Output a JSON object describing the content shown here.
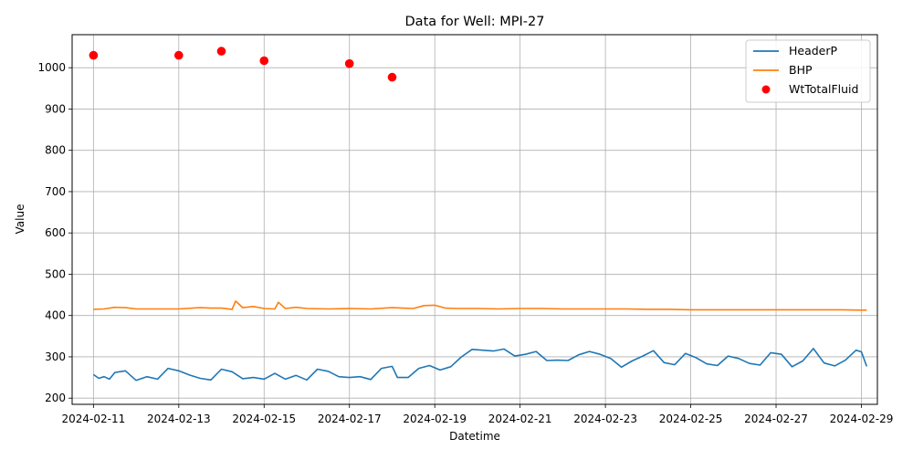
{
  "chart_data": {
    "type": "line",
    "title": "Data for Well: MPI-27",
    "xlabel": "Datetime",
    "ylabel": "Value",
    "xlim": [
      "2024-02-10T12:00",
      "2024-02-29T09:00"
    ],
    "ylim": [
      185,
      1080
    ],
    "grid": true,
    "legend_position": "top-right",
    "x_ticks": [
      "2024-02-11",
      "2024-02-13",
      "2024-02-15",
      "2024-02-17",
      "2024-02-19",
      "2024-02-21",
      "2024-02-23",
      "2024-02-25",
      "2024-02-27",
      "2024-02-29"
    ],
    "y_ticks": [
      200,
      300,
      400,
      500,
      600,
      700,
      800,
      900,
      1000
    ],
    "series": [
      {
        "name": "HeaderP",
        "kind": "line",
        "color": "#1f77b4",
        "points": [
          [
            "2024-02-11T00:00",
            257
          ],
          [
            "2024-02-11T03:00",
            248
          ],
          [
            "2024-02-11T06:00",
            252
          ],
          [
            "2024-02-11T09:00",
            246
          ],
          [
            "2024-02-11T12:00",
            262
          ],
          [
            "2024-02-11T18:00",
            266
          ],
          [
            "2024-02-12T00:00",
            243
          ],
          [
            "2024-02-12T06:00",
            252
          ],
          [
            "2024-02-12T12:00",
            246
          ],
          [
            "2024-02-12T18:00",
            272
          ],
          [
            "2024-02-13T00:00",
            266
          ],
          [
            "2024-02-13T06:00",
            256
          ],
          [
            "2024-02-13T12:00",
            248
          ],
          [
            "2024-02-13T18:00",
            244
          ],
          [
            "2024-02-14T00:00",
            270
          ],
          [
            "2024-02-14T06:00",
            264
          ],
          [
            "2024-02-14T12:00",
            247
          ],
          [
            "2024-02-14T18:00",
            250
          ],
          [
            "2024-02-15T00:00",
            246
          ],
          [
            "2024-02-15T06:00",
            260
          ],
          [
            "2024-02-15T12:00",
            246
          ],
          [
            "2024-02-15T18:00",
            255
          ],
          [
            "2024-02-16T00:00",
            244
          ],
          [
            "2024-02-16T06:00",
            270
          ],
          [
            "2024-02-16T12:00",
            265
          ],
          [
            "2024-02-16T18:00",
            252
          ],
          [
            "2024-02-17T00:00",
            250
          ],
          [
            "2024-02-17T06:00",
            252
          ],
          [
            "2024-02-17T12:00",
            245
          ],
          [
            "2024-02-17T18:00",
            272
          ],
          [
            "2024-02-18T00:00",
            277
          ],
          [
            "2024-02-18T03:00",
            250
          ],
          [
            "2024-02-18T09:00",
            250
          ],
          [
            "2024-02-18T15:00",
            272
          ],
          [
            "2024-02-18T21:00",
            279
          ],
          [
            "2024-02-19T03:00",
            268
          ],
          [
            "2024-02-19T09:00",
            276
          ],
          [
            "2024-02-19T15:00",
            300
          ],
          [
            "2024-02-19T21:00",
            318
          ],
          [
            "2024-02-20T03:00",
            316
          ],
          [
            "2024-02-20T09:00",
            314
          ],
          [
            "2024-02-20T15:00",
            319
          ],
          [
            "2024-02-20T21:00",
            302
          ],
          [
            "2024-02-21T03:00",
            306
          ],
          [
            "2024-02-21T09:00",
            313
          ],
          [
            "2024-02-21T15:00",
            291
          ],
          [
            "2024-02-21T21:00",
            292
          ],
          [
            "2024-02-22T03:00",
            291
          ],
          [
            "2024-02-22T09:00",
            305
          ],
          [
            "2024-02-22T15:00",
            313
          ],
          [
            "2024-02-22T21:00",
            306
          ],
          [
            "2024-02-23T03:00",
            296
          ],
          [
            "2024-02-23T09:00",
            275
          ],
          [
            "2024-02-23T15:00",
            290
          ],
          [
            "2024-02-23T21:00",
            302
          ],
          [
            "2024-02-24T03:00",
            315
          ],
          [
            "2024-02-24T09:00",
            286
          ],
          [
            "2024-02-24T15:00",
            281
          ],
          [
            "2024-02-24T21:00",
            308
          ],
          [
            "2024-02-25T03:00",
            298
          ],
          [
            "2024-02-25T09:00",
            283
          ],
          [
            "2024-02-25T15:00",
            279
          ],
          [
            "2024-02-25T21:00",
            302
          ],
          [
            "2024-02-26T03:00",
            296
          ],
          [
            "2024-02-26T09:00",
            284
          ],
          [
            "2024-02-26T15:00",
            280
          ],
          [
            "2024-02-26T21:00",
            310
          ],
          [
            "2024-02-27T03:00",
            306
          ],
          [
            "2024-02-27T09:00",
            276
          ],
          [
            "2024-02-27T15:00",
            290
          ],
          [
            "2024-02-27T21:00",
            320
          ],
          [
            "2024-02-28T03:00",
            285
          ],
          [
            "2024-02-28T09:00",
            278
          ],
          [
            "2024-02-28T15:00",
            292
          ],
          [
            "2024-02-28T21:00",
            316
          ],
          [
            "2024-02-29T00:00",
            312
          ],
          [
            "2024-02-29T03:00",
            277
          ]
        ]
      },
      {
        "name": "BHP",
        "kind": "line",
        "color": "#ff7f0e",
        "points": [
          [
            "2024-02-11T00:00",
            415
          ],
          [
            "2024-02-11T06:00",
            416
          ],
          [
            "2024-02-11T12:00",
            420
          ],
          [
            "2024-02-11T18:00",
            419
          ],
          [
            "2024-02-12T00:00",
            416
          ],
          [
            "2024-02-12T12:00",
            416
          ],
          [
            "2024-02-13T00:00",
            416
          ],
          [
            "2024-02-13T12:00",
            419
          ],
          [
            "2024-02-13T18:00",
            418
          ],
          [
            "2024-02-14T00:00",
            418
          ],
          [
            "2024-02-14T06:00",
            415
          ],
          [
            "2024-02-14T08:00",
            435
          ],
          [
            "2024-02-14T12:00",
            419
          ],
          [
            "2024-02-14T18:00",
            422
          ],
          [
            "2024-02-15T00:00",
            417
          ],
          [
            "2024-02-15T06:00",
            416
          ],
          [
            "2024-02-15T08:00",
            432
          ],
          [
            "2024-02-15T12:00",
            417
          ],
          [
            "2024-02-15T18:00",
            420
          ],
          [
            "2024-02-16T00:00",
            417
          ],
          [
            "2024-02-16T12:00",
            416
          ],
          [
            "2024-02-17T00:00",
            417
          ],
          [
            "2024-02-17T12:00",
            416
          ],
          [
            "2024-02-18T00:00",
            419
          ],
          [
            "2024-02-18T06:00",
            418
          ],
          [
            "2024-02-18T12:00",
            417
          ],
          [
            "2024-02-18T18:00",
            424
          ],
          [
            "2024-02-19T00:00",
            425
          ],
          [
            "2024-02-19T06:00",
            418
          ],
          [
            "2024-02-19T12:00",
            417
          ],
          [
            "2024-02-20T00:00",
            417
          ],
          [
            "2024-02-20T12:00",
            416
          ],
          [
            "2024-02-21T00:00",
            417
          ],
          [
            "2024-02-21T12:00",
            417
          ],
          [
            "2024-02-22T00:00",
            416
          ],
          [
            "2024-02-22T12:00",
            416
          ],
          [
            "2024-02-23T00:00",
            416
          ],
          [
            "2024-02-23T12:00",
            416
          ],
          [
            "2024-02-24T00:00",
            415
          ],
          [
            "2024-02-24T12:00",
            415
          ],
          [
            "2024-02-25T00:00",
            414
          ],
          [
            "2024-02-25T12:00",
            414
          ],
          [
            "2024-02-26T00:00",
            414
          ],
          [
            "2024-02-26T12:00",
            414
          ],
          [
            "2024-02-27T00:00",
            414
          ],
          [
            "2024-02-27T12:00",
            414
          ],
          [
            "2024-02-28T00:00",
            414
          ],
          [
            "2024-02-28T12:00",
            414
          ],
          [
            "2024-02-29T00:00",
            413
          ],
          [
            "2024-02-29T03:00",
            413
          ]
        ]
      },
      {
        "name": "WtTotalFluid",
        "kind": "scatter",
        "color": "#ff0000",
        "points": [
          [
            "2024-02-11T00:00",
            1030
          ],
          [
            "2024-02-13T00:00",
            1030
          ],
          [
            "2024-02-14T00:00",
            1040
          ],
          [
            "2024-02-15T00:00",
            1017
          ],
          [
            "2024-02-17T00:00",
            1010
          ],
          [
            "2024-02-18T00:00",
            977
          ]
        ]
      }
    ]
  }
}
